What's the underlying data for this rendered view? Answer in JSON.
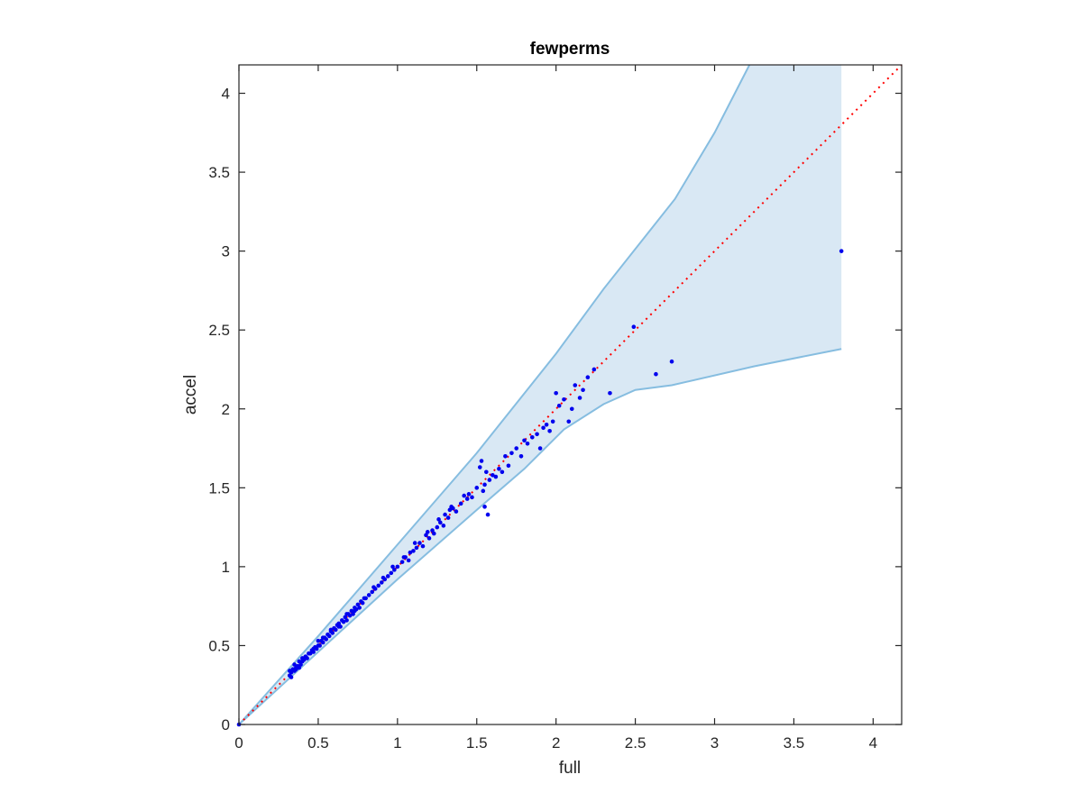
{
  "chart_data": {
    "type": "scatter",
    "title": "fewperms",
    "xlabel": "full",
    "ylabel": "accel",
    "xlim": [
      0,
      4.18
    ],
    "ylim": [
      0,
      4.18
    ],
    "xticks": [
      "0",
      "0.5",
      "1",
      "1.5",
      "2",
      "2.5",
      "3",
      "3.5",
      "4"
    ],
    "yticks": [
      "0",
      "0.5",
      "1",
      "1.5",
      "2",
      "2.5",
      "3",
      "3.5",
      "4"
    ],
    "grid": false,
    "legend": "none",
    "colors": {
      "points": "#0000ee",
      "band_fill": "#d9e8f4",
      "band_edge": "#86bde0",
      "diagonal": "#ff0000",
      "axes": "#262626"
    },
    "band": {
      "upper": [
        [
          0,
          0
        ],
        [
          0.5,
          0.56
        ],
        [
          1,
          1.14
        ],
        [
          1.5,
          1.72
        ],
        [
          2,
          2.35
        ],
        [
          2.3,
          2.76
        ],
        [
          2.75,
          3.33
        ],
        [
          3.0,
          3.75
        ],
        [
          3.22,
          4.18
        ],
        [
          3.8,
          4.18
        ]
      ],
      "lower": [
        [
          0,
          0
        ],
        [
          0.5,
          0.46
        ],
        [
          1,
          0.92
        ],
        [
          1.5,
          1.36
        ],
        [
          1.8,
          1.62
        ],
        [
          2.05,
          1.87
        ],
        [
          2.3,
          2.03
        ],
        [
          2.5,
          2.12
        ],
        [
          2.73,
          2.15
        ],
        [
          3.25,
          2.27
        ],
        [
          3.8,
          2.38
        ]
      ]
    },
    "reference_line": {
      "style": "dotted",
      "from": [
        0,
        0
      ],
      "to": [
        4.18,
        4.18
      ]
    },
    "series": [
      {
        "x": [
          0.0,
          0.32,
          0.32,
          0.33,
          0.34,
          0.33,
          0.35,
          0.36,
          0.35,
          0.37,
          0.38,
          0.38,
          0.39,
          0.4,
          0.4,
          0.41,
          0.42,
          0.43,
          0.44,
          0.45,
          0.46,
          0.47,
          0.48,
          0.49,
          0.5,
          0.5,
          0.51,
          0.52,
          0.53,
          0.54,
          0.55,
          0.56,
          0.57,
          0.58,
          0.59,
          0.6,
          0.61,
          0.62,
          0.63,
          0.64,
          0.65,
          0.66,
          0.67,
          0.68,
          0.69,
          0.7,
          0.71,
          0.72,
          0.73,
          0.74,
          0.75,
          0.76,
          0.77,
          0.78,
          0.8,
          0.82,
          0.84,
          0.86,
          0.88,
          0.9,
          0.92,
          0.94,
          0.96,
          0.98,
          1.0,
          1.03,
          1.05,
          1.07,
          1.08,
          1.1,
          1.12,
          1.14,
          1.16,
          1.18,
          1.2,
          1.22,
          1.23,
          1.25,
          1.27,
          1.29,
          1.3,
          1.32,
          1.33,
          1.35,
          1.37,
          1.4,
          1.42,
          1.44,
          1.47,
          1.5,
          1.52,
          1.54,
          1.55,
          1.56,
          1.58,
          1.6,
          1.62,
          1.64,
          1.66,
          1.68,
          1.7,
          1.72,
          1.75,
          1.78,
          1.8,
          1.82,
          1.85,
          1.88,
          1.9,
          1.92,
          1.94,
          1.96,
          1.98,
          2.0,
          2.02,
          2.05,
          2.08,
          2.1,
          2.12,
          2.15,
          2.17,
          2.2,
          2.24,
          2.34,
          2.49,
          2.63,
          2.73,
          3.8,
          0.36,
          0.42,
          0.47,
          0.53,
          0.58,
          0.63,
          0.68,
          0.73,
          0.79,
          0.85,
          0.91,
          0.97,
          1.04,
          1.11,
          1.19,
          1.26,
          1.34,
          1.45,
          1.53,
          1.55,
          1.57
        ],
        "y": [
          0.0,
          0.31,
          0.34,
          0.33,
          0.35,
          0.3,
          0.34,
          0.36,
          0.38,
          0.37,
          0.36,
          0.4,
          0.38,
          0.4,
          0.42,
          0.41,
          0.43,
          0.42,
          0.45,
          0.45,
          0.47,
          0.46,
          0.49,
          0.48,
          0.5,
          0.53,
          0.5,
          0.53,
          0.52,
          0.55,
          0.54,
          0.57,
          0.56,
          0.59,
          0.58,
          0.61,
          0.6,
          0.63,
          0.64,
          0.62,
          0.66,
          0.65,
          0.68,
          0.66,
          0.7,
          0.69,
          0.72,
          0.7,
          0.74,
          0.73,
          0.76,
          0.74,
          0.78,
          0.77,
          0.8,
          0.82,
          0.84,
          0.86,
          0.88,
          0.9,
          0.92,
          0.94,
          0.96,
          0.98,
          1.0,
          1.03,
          1.06,
          1.04,
          1.09,
          1.1,
          1.12,
          1.15,
          1.13,
          1.2,
          1.18,
          1.23,
          1.21,
          1.25,
          1.28,
          1.26,
          1.33,
          1.31,
          1.36,
          1.37,
          1.35,
          1.4,
          1.45,
          1.43,
          1.44,
          1.5,
          1.63,
          1.48,
          1.52,
          1.6,
          1.55,
          1.58,
          1.57,
          1.62,
          1.6,
          1.7,
          1.64,
          1.72,
          1.75,
          1.7,
          1.8,
          1.78,
          1.82,
          1.84,
          1.75,
          1.88,
          1.9,
          1.86,
          1.92,
          2.1,
          2.02,
          2.06,
          1.92,
          2.0,
          2.15,
          2.07,
          2.12,
          2.2,
          2.25,
          2.1,
          2.52,
          2.22,
          2.3,
          3.0,
          0.35,
          0.43,
          0.48,
          0.55,
          0.6,
          0.62,
          0.7,
          0.72,
          0.8,
          0.87,
          0.93,
          1.0,
          1.06,
          1.15,
          1.22,
          1.3,
          1.38,
          1.46,
          1.67,
          1.38,
          1.33
        ]
      }
    ]
  }
}
